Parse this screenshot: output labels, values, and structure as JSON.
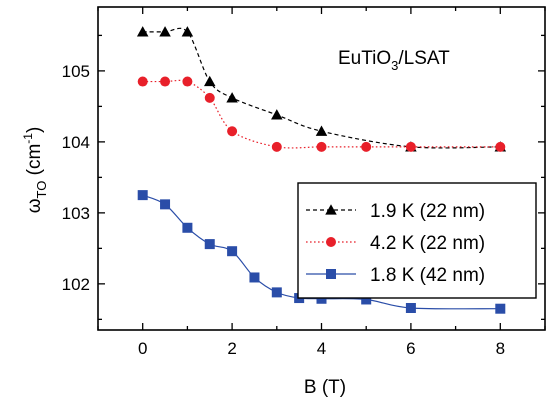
{
  "chart_data": {
    "type": "line",
    "annotation": {
      "main": "EuTiO",
      "sub": "3",
      "rest": "/LSAT"
    },
    "xlabel": "B (T)",
    "ylabel": {
      "main": "ω",
      "sub": "TO",
      "unit_open": " (cm",
      "sup": "-1",
      "unit_close": ")"
    },
    "xlim": [
      -1,
      9
    ],
    "ylim": [
      101.35,
      105.9
    ],
    "x_ticks": [
      0,
      2,
      4,
      6,
      8
    ],
    "x_tick_labels": [
      "0",
      "2",
      "4",
      "6",
      "8"
    ],
    "y_ticks": [
      102,
      103,
      104,
      105
    ],
    "y_tick_labels": [
      "102",
      "103",
      "104",
      "105"
    ],
    "grid": false,
    "legend_position": "center-right",
    "series": [
      {
        "name": "1.9 K (22 nm)",
        "color": "#000000",
        "marker": "triangle",
        "line_style": "dashed",
        "x": [
          0,
          0.5,
          1,
          1.5,
          2,
          3,
          4,
          6,
          8
        ],
        "y": [
          105.55,
          105.55,
          105.55,
          104.85,
          104.62,
          104.38,
          104.15,
          103.93,
          103.93
        ]
      },
      {
        "name": "4.2 K (22 nm)",
        "color": "#e8202a",
        "marker": "circle",
        "line_style": "dotted",
        "x": [
          0,
          0.5,
          1,
          1.5,
          2,
          3,
          4,
          5,
          6,
          8
        ],
        "y": [
          104.85,
          104.85,
          104.85,
          104.62,
          104.15,
          103.93,
          103.93,
          103.93,
          103.93,
          103.93
        ]
      },
      {
        "name": "1.8 K (42 nm)",
        "color": "#2a4da8",
        "marker": "square",
        "line_style": "solid",
        "x": [
          0,
          0.5,
          1,
          1.5,
          2,
          2.5,
          3,
          3.5,
          4,
          5,
          6,
          8
        ],
        "y": [
          103.25,
          103.12,
          102.79,
          102.56,
          102.46,
          102.09,
          101.88,
          101.8,
          101.79,
          101.78,
          101.66,
          101.65
        ]
      }
    ]
  }
}
